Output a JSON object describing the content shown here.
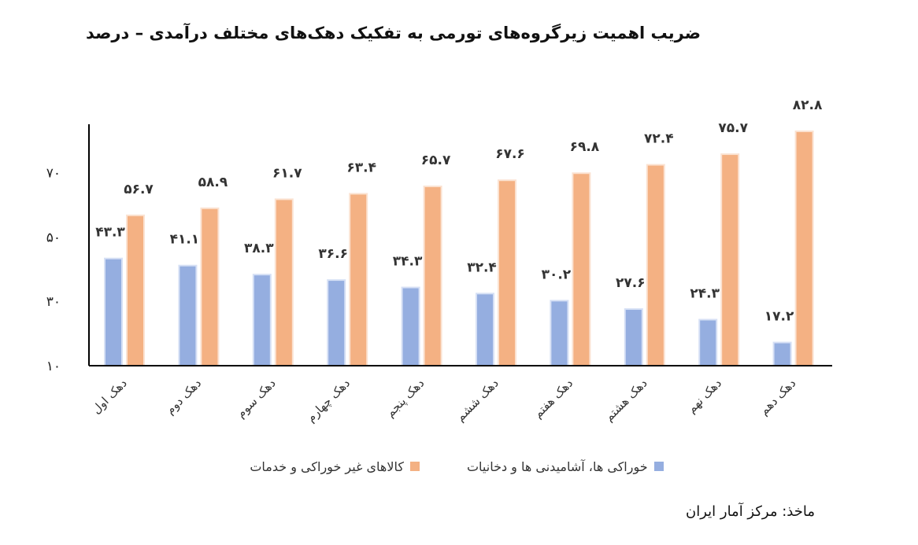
{
  "chart_data": {
    "type": "bar",
    "title": "ضریب اهمیت زیرگروه‌های تورمی به تفکیک دهک‌های مختلف درآمدی – درصد",
    "categories": [
      "دهک اول",
      "دهک دوم",
      "دهک سوم",
      "دهک چهارم",
      "دهک پنجم",
      "دهک ششم",
      "دهک هفتم",
      "دهک هشتم",
      "دهک نهم",
      "دهک دهم"
    ],
    "series": [
      {
        "name": "خوراکی ها، آشامیدنی ها  و دخانیات",
        "color": "#95AEE0",
        "values": [
          43.3,
          41.1,
          38.3,
          36.6,
          34.3,
          32.4,
          30.2,
          27.6,
          24.3,
          17.2
        ],
        "labels": [
          "۴۳.۳",
          "۴۱.۱",
          "۳۸.۳",
          "۳۶.۶",
          "۳۴.۳",
          "۳۲.۴",
          "۳۰.۲",
          "۲۷.۶",
          "۲۴.۳",
          "۱۷.۲"
        ]
      },
      {
        "name": "کالاهای غیر خوراکی و خدمات",
        "color": "#F4B183",
        "values": [
          56.7,
          58.9,
          61.7,
          63.4,
          65.7,
          67.6,
          69.8,
          72.4,
          75.7,
          82.8
        ],
        "labels": [
          "۵۶.۷",
          "۵۸.۹",
          "۶۱.۷",
          "۶۳.۴",
          "۶۵.۷",
          "۶۷.۶",
          "۶۹.۸",
          "۷۲.۴",
          "۷۵.۷",
          "۸۲.۸"
        ]
      }
    ],
    "yticks": [
      10,
      30,
      50,
      70
    ],
    "ytick_labels": [
      "۱۰",
      "۳۰",
      "۵۰",
      "۷۰"
    ],
    "ylim": [
      10,
      85
    ],
    "xlabel": "",
    "ylabel": "",
    "legend_position": "bottom",
    "grid": false
  },
  "source_note": "ماخذ: مرکز آمار ایران"
}
